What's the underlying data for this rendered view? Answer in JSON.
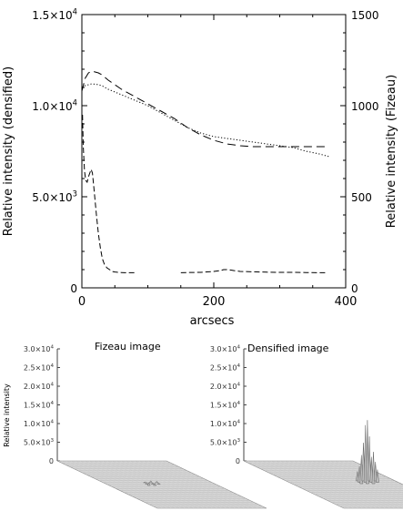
{
  "chart_data": [
    {
      "type": "line",
      "xlabel": "arcsecs",
      "ylabel_left": "Relative intensity (densified)",
      "ylabel_right": "Relative intensity (Fizeau)",
      "xlim": [
        0,
        400
      ],
      "ylim_left": [
        0,
        15000
      ],
      "ylim_right": [
        0,
        1500
      ],
      "x_ticks": [
        "0",
        "200",
        "400"
      ],
      "y_ticks_left": [
        {
          "v": 0,
          "base": "0"
        },
        {
          "v": 5000,
          "base": "5.0×10",
          "exp": "3"
        },
        {
          "v": 10000,
          "base": "1.0×10",
          "exp": "4"
        },
        {
          "v": 15000,
          "base": "1.5×10",
          "exp": "4"
        }
      ],
      "y_ticks_right": [
        "0",
        "500",
        "1000",
        "1500"
      ],
      "series": [
        {
          "style": "long-dash",
          "axis": "right",
          "x": [
            0,
            5,
            10,
            15,
            20,
            25,
            30,
            40,
            60,
            80,
            100,
            120,
            140,
            160,
            180,
            200,
            220,
            240,
            260,
            280,
            300,
            320,
            340,
            360,
            375
          ],
          "y": [
            1080,
            1150,
            1180,
            1190,
            1185,
            1180,
            1170,
            1140,
            1090,
            1050,
            1010,
            970,
            930,
            880,
            840,
            810,
            790,
            780,
            775,
            775,
            775,
            775,
            775,
            775,
            775
          ]
        },
        {
          "style": "dotted",
          "axis": "right",
          "x": [
            0,
            5,
            10,
            15,
            20,
            25,
            30,
            40,
            60,
            80,
            100,
            120,
            140,
            160,
            180,
            200,
            220,
            240,
            260,
            280,
            300,
            320,
            340,
            360,
            375
          ],
          "y": [
            1100,
            1110,
            1115,
            1120,
            1118,
            1115,
            1110,
            1090,
            1060,
            1030,
            1000,
            960,
            920,
            880,
            850,
            830,
            820,
            810,
            800,
            790,
            780,
            770,
            750,
            735,
            720
          ]
        },
        {
          "style": "dash-gap",
          "axis": "left",
          "x": [
            1,
            2,
            4,
            6,
            8,
            10,
            12,
            14,
            16,
            18,
            20,
            22,
            25,
            28,
            31,
            34,
            38,
            42,
            46,
            50,
            55,
            60,
            65,
            70,
            75,
            80,
            150,
            160,
            180,
            200,
            210,
            215,
            220,
            225,
            230,
            240,
            260,
            280,
            300,
            320,
            340,
            360,
            370
          ],
          "y": [
            9500,
            7800,
            6400,
            5900,
            5800,
            6100,
            6300,
            6500,
            6300,
            5600,
            4800,
            4000,
            3000,
            2200,
            1600,
            1300,
            1100,
            1000,
            900,
            870,
            850,
            840,
            830,
            830,
            830,
            830,
            830,
            840,
            850,
            900,
            950,
            1000,
            1000,
            980,
            950,
            900,
            880,
            860,
            850,
            850,
            840,
            830,
            830
          ],
          "break_after_index": 25
        }
      ]
    },
    {
      "type": "surface",
      "title": "Fizeau image",
      "zlabel": "Relative intensity",
      "z_ticks": [
        {
          "v": 0,
          "base": "0"
        },
        {
          "v": 5000,
          "base": "5.0×10",
          "exp": "3"
        },
        {
          "v": 10000,
          "base": "1.0×10",
          "exp": "4"
        },
        {
          "v": 15000,
          "base": "1.5×10",
          "exp": "4"
        },
        {
          "v": 20000,
          "base": "2.0×10",
          "exp": "4"
        },
        {
          "v": 25000,
          "base": "2.5×10",
          "exp": "4"
        },
        {
          "v": 30000,
          "base": "3.0×10",
          "exp": "4"
        }
      ],
      "zlim": [
        0,
        30000
      ],
      "peak": 800
    },
    {
      "type": "surface",
      "title": "Densified image",
      "zlabel": "",
      "z_ticks": [
        {
          "v": 0,
          "base": "0"
        },
        {
          "v": 5000,
          "base": "5.0×10",
          "exp": "3"
        },
        {
          "v": 10000,
          "base": "1.0×10",
          "exp": "4"
        },
        {
          "v": 15000,
          "base": "1.5×10",
          "exp": "4"
        },
        {
          "v": 20000,
          "base": "2.0×10",
          "exp": "4"
        },
        {
          "v": 25000,
          "base": "2.5×10",
          "exp": "4"
        },
        {
          "v": 30000,
          "base": "3.0×10",
          "exp": "4"
        }
      ],
      "zlim": [
        0,
        30000
      ],
      "peak": 17000
    }
  ]
}
